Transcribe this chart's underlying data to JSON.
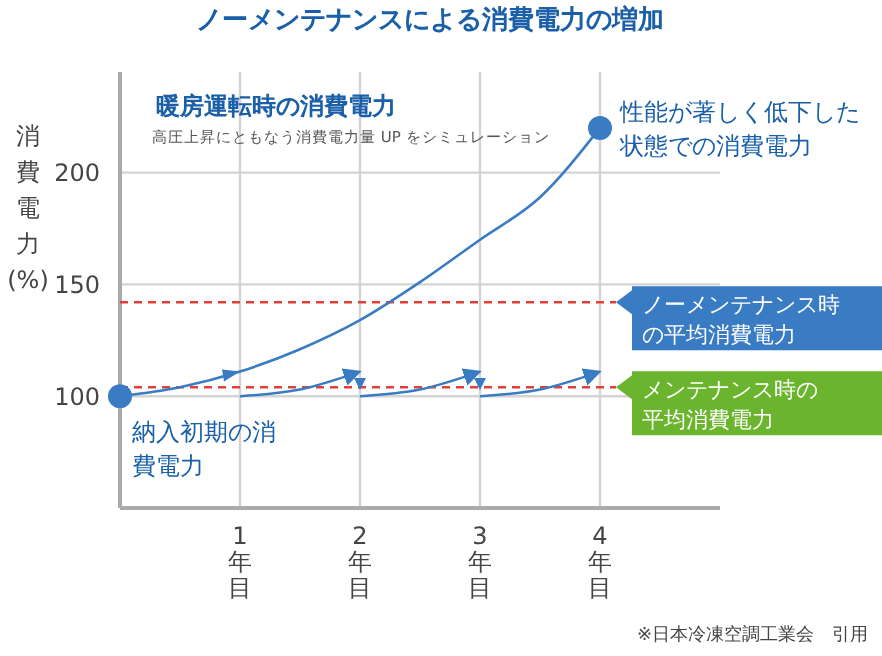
{
  "chart_data": {
    "type": "line",
    "title": "ノーメンテナンスによる消費電力の増加",
    "ylabel": "消費電力(%)",
    "xlim": [
      0,
      5
    ],
    "xticks": [
      {
        "value": 1,
        "label": "1年目"
      },
      {
        "value": 2,
        "label": "2年目"
      },
      {
        "value": 3,
        "label": "3年目"
      },
      {
        "value": 4,
        "label": "4年目"
      }
    ],
    "ylim": [
      50,
      245
    ],
    "yticks": [
      100,
      150,
      200
    ],
    "grid": true,
    "series": [
      {
        "color": "#3a7cc4",
        "x": [
          0,
          0.5,
          1,
          1.5,
          2,
          2.5,
          3,
          3.5,
          4
        ],
        "values": [
          100,
          104,
          111,
          121,
          134,
          151,
          170,
          189,
          220
        ]
      },
      {
        "color": "#3a7cc4",
        "x": [
          1,
          1.5,
          2
        ],
        "values": [
          100,
          103,
          111
        ]
      },
      {
        "color": "#3a7cc4",
        "x": [
          2,
          2.5,
          3
        ],
        "values": [
          100,
          103,
          111
        ]
      },
      {
        "color": "#3a7cc4",
        "x": [
          3,
          3.5,
          4
        ],
        "values": [
          100,
          103,
          111
        ]
      },
      {
        "type": "scatter",
        "color": "#3a7cc4",
        "x": [
          0,
          4
        ],
        "values": [
          100,
          220
        ]
      }
    ],
    "ref_lines": [
      {
        "axis": "y",
        "value": 142,
        "label": "ノーメンテナンス時の平均消費電力",
        "color": "#e0403a",
        "line_style": "dashed"
      },
      {
        "axis": "y",
        "value": 104,
        "label": "メンテナンス時の平均消費電力",
        "color": "#e0403a",
        "line_style": "dashed"
      }
    ],
    "annotations": [
      "暖房運転時の消費電力",
      "高圧上昇にともなう消費電力量 UP をシミュレーション",
      {
        "text": "納入初期の消費電力",
        "x": 0,
        "y": 100
      },
      {
        "text": "性能が著しく低下した状態での消費電力",
        "x": 4,
        "y": 220
      },
      "※日本冷凍空調工業会　引用"
    ]
  }
}
